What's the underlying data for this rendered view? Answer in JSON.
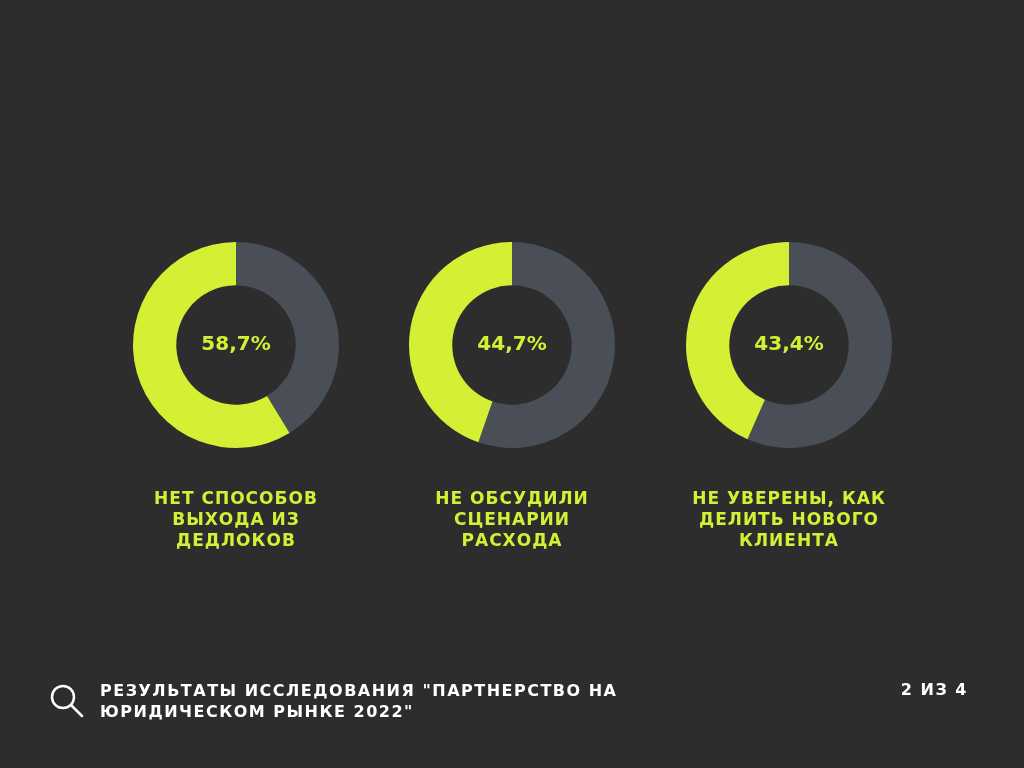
{
  "chart_data": [
    {
      "type": "donut",
      "title": "НЕТ СПОСОБОВ ВЫХОДА ИЗ ДЕДЛОКОВ",
      "categories": [
        null,
        null
      ],
      "values": [
        41.3,
        58.7
      ],
      "colors": [
        "#494e57",
        "#d4ef34"
      ],
      "value_labels": [
        null,
        "58,7%"
      ]
    },
    {
      "type": "donut",
      "title": "НЕ ОБСУДИЛИ СЦЕНАРИИ РАСХОДА",
      "categories": [
        null,
        null
      ],
      "values": [
        55.3,
        44.7
      ],
      "colors": [
        "#494e57",
        "#d4ef34"
      ],
      "value_labels": [
        null,
        "44,7%"
      ]
    },
    {
      "type": "donut",
      "title": "НЕ УВЕРЕНЫ, КАК ДЕЛИТЬ НОВОГО КЛИЕНТА",
      "categories": [
        null,
        null
      ],
      "values": [
        56.6,
        43.4
      ],
      "colors": [
        "#494e57",
        "#d4ef34"
      ],
      "value_labels": [
        null,
        "43,4%"
      ]
    },
    {
      "type": "other",
      "annotations": [
        "РЕЗУЛЬТАТЫ ИССЛЕДОВАНИЯ \"ПАРТНЕРСТВО НА ЮРИДИЧЕСКОМ РЫНКЕ 2022\"",
        "2 ИЗ 4"
      ]
    }
  ]
}
